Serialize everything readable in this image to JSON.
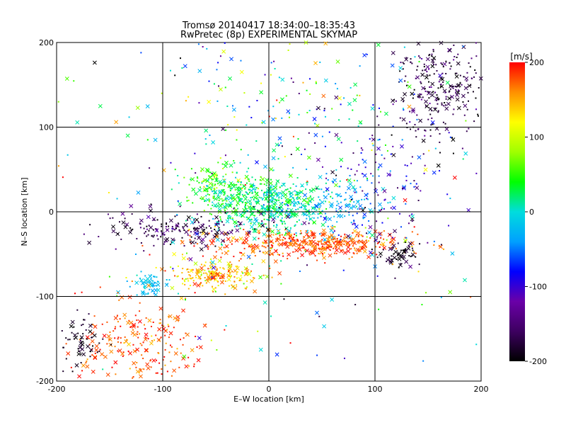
{
  "chart_data": {
    "type": "scatter",
    "title": "Tromsø 20140417 18:34:00–18:35:43",
    "subtitle": "RwPretec (8p) EXPERIMENTAL SKYMAP",
    "xlabel": "E–W location [km]",
    "ylabel": "N–S location [km]",
    "xlim": [
      -200,
      200
    ],
    "ylim": [
      -200,
      200
    ],
    "xticks": [
      -200,
      -100,
      0,
      100,
      200
    ],
    "yticks": [
      -200,
      -100,
      0,
      100,
      200
    ],
    "grid": true,
    "marker_types": [
      "x",
      "dot"
    ],
    "colorbar": {
      "label": "[m/s]",
      "min": -200,
      "max": 200,
      "ticks": [
        200,
        100,
        0,
        -100,
        -200
      ],
      "colormap": [
        "#000000",
        "#3d0060",
        "#6a00a8",
        "#0000ff",
        "#00a0ff",
        "#00dddd",
        "#00ff00",
        "#a0ff00",
        "#ffff00",
        "#ff9000",
        "#ff0000"
      ]
    },
    "clusters": [
      {
        "label": "north-east dark cluster",
        "cx": 160,
        "cy": 150,
        "sx": 22,
        "sy": 30,
        "n": 260,
        "vmean": -175,
        "vsd": 22
      },
      {
        "label": "central green cluster",
        "cx": 0,
        "cy": 10,
        "sx": 28,
        "sy": 18,
        "n": 520,
        "vmean": 15,
        "vsd": 25
      },
      {
        "label": "green band west",
        "cx": -45,
        "cy": 30,
        "sx": 18,
        "sy": 14,
        "n": 180,
        "vmean": 40,
        "vsd": 25
      },
      {
        "label": "cyan arc east",
        "cx": 55,
        "cy": 5,
        "sx": 25,
        "sy": 18,
        "n": 140,
        "vmean": -35,
        "vsd": 20
      },
      {
        "label": "red band",
        "cx": 40,
        "cy": -38,
        "sx": 48,
        "sy": 8,
        "n": 420,
        "vmean": 175,
        "vsd": 20
      },
      {
        "label": "dark band west",
        "cx": -80,
        "cy": -20,
        "sx": 40,
        "sy": 10,
        "n": 200,
        "vmean": -170,
        "vsd": 25
      },
      {
        "label": "orange loop",
        "cx": -50,
        "cy": -75,
        "sx": 22,
        "sy": 9,
        "n": 200,
        "vmean": 140,
        "vsd": 30
      },
      {
        "label": "cyan patch",
        "cx": -110,
        "cy": -85,
        "sx": 10,
        "sy": 7,
        "n": 60,
        "vmean": -20,
        "vsd": 12
      },
      {
        "label": "south-west red",
        "cx": -120,
        "cy": -155,
        "sx": 32,
        "sy": 28,
        "n": 230,
        "vmean": 180,
        "vsd": 18
      },
      {
        "label": "far south-west dark",
        "cx": -175,
        "cy": -150,
        "sx": 10,
        "sy": 14,
        "n": 60,
        "vmean": -190,
        "vsd": 10
      },
      {
        "label": "east dark tail",
        "cx": 125,
        "cy": -50,
        "sx": 10,
        "sy": 9,
        "n": 60,
        "vmean": -190,
        "vsd": 12
      },
      {
        "label": "north blue-green scatter",
        "cx": 30,
        "cy": 130,
        "sx": 60,
        "sy": 40,
        "n": 120,
        "vmean": 0,
        "vsd": 80
      },
      {
        "label": "north-east blue scatter",
        "cx": 110,
        "cy": 40,
        "sx": 35,
        "sy": 45,
        "n": 130,
        "vmean": -110,
        "vsd": 40
      },
      {
        "label": "background scatter",
        "cx": 0,
        "cy": 0,
        "sx": 120,
        "sy": 110,
        "n": 260,
        "vmean": 0,
        "vsd": 110
      }
    ]
  }
}
